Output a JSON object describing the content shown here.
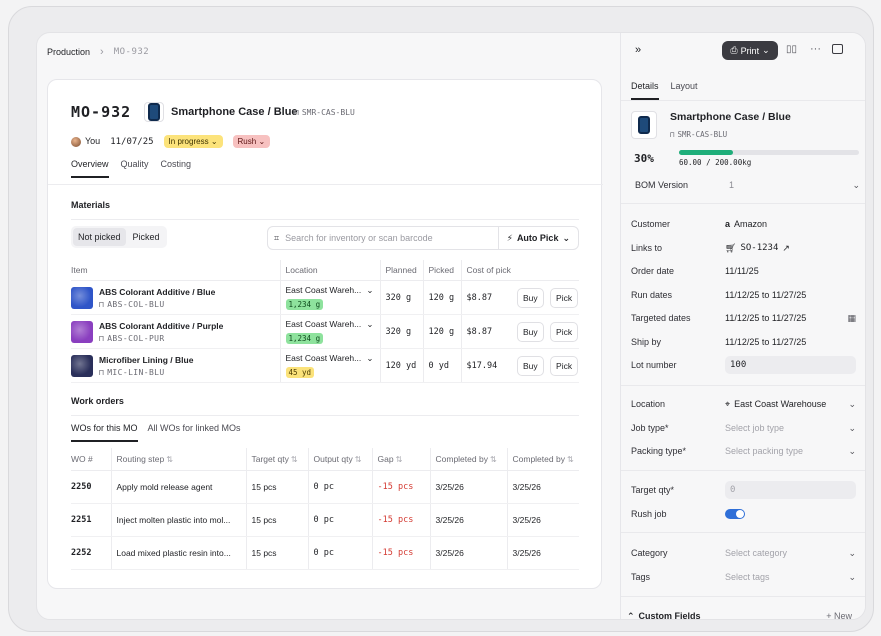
{
  "breadcrumb": {
    "root": "Production",
    "current": "MO-932"
  },
  "order": {
    "id": "MO-932",
    "product_name": "Smartphone Case / Blue",
    "product_sku": "SMR-CAS-BLU",
    "owner": "You",
    "date": "11/07/25",
    "status": "In progress",
    "priority": "Rush"
  },
  "tabs": [
    "Overview",
    "Quality",
    "Costing"
  ],
  "materials": {
    "title": "Materials",
    "seg_not_picked": "Not picked",
    "seg_picked": "Picked",
    "search_placeholder": "Search for inventory or scan barcode",
    "auto_pick": "Auto Pick",
    "columns": [
      "Item",
      "Location",
      "Planned",
      "Picked",
      "Cost of pick"
    ],
    "buy_label": "Buy",
    "pick_label": "Pick",
    "rows": [
      {
        "name": "ABS Colorant Additive / Blue",
        "sku": "ABS-COL-BLU",
        "location": "East Coast Wareh...",
        "stock": "1,234 g",
        "stock_color": "green",
        "planned": "320 g",
        "picked": "120 g",
        "cost": "$8.87",
        "swatch": "#2f55c8"
      },
      {
        "name": "ABS Colorant Additive / Purple",
        "sku": "ABS-COL-PUR",
        "location": "East Coast Wareh...",
        "stock": "1,234 g",
        "stock_color": "green",
        "planned": "320 g",
        "picked": "120 g",
        "cost": "$8.87",
        "swatch": "#8a3fbf"
      },
      {
        "name": "Microfiber Lining / Blue",
        "sku": "MIC-LIN-BLU",
        "location": "East Coast Wareh...",
        "stock": "45 yd",
        "stock_color": "yellow",
        "planned": "120 yd",
        "picked": "0 yd",
        "cost": "$17.94",
        "swatch": "#2a2f5a"
      }
    ]
  },
  "work_orders": {
    "title": "Work orders",
    "tab_this": "WOs for this MO",
    "tab_all": "All WOs for linked MOs",
    "columns": [
      "WO #",
      "Routing step",
      "Target qty",
      "Output qty",
      "Gap",
      "Completed by",
      "Completed by"
    ],
    "rows": [
      {
        "num": "2250",
        "step": "Apply mold release agent",
        "target": "15 pcs",
        "output": "0 pc",
        "gap": "-15 pcs",
        "c1": "3/25/26",
        "c2": "3/25/26"
      },
      {
        "num": "2251",
        "step": "Inject molten plastic into mol...",
        "target": "15 pcs",
        "output": "0 pc",
        "gap": "-15 pcs",
        "c1": "3/25/26",
        "c2": "3/25/26"
      },
      {
        "num": "2252",
        "step": "Load mixed plastic resin into...",
        "target": "15 pcs",
        "output": "0 pc",
        "gap": "-15 pcs",
        "c1": "3/25/26",
        "c2": "3/25/26"
      }
    ]
  },
  "panel": {
    "print_label": "Print",
    "tab_details": "Details",
    "tab_layout": "Layout",
    "product_name": "Smartphone Case / Blue",
    "product_sku": "SMR-CAS-BLU",
    "progress_pct": "30%",
    "progress_fraction": 0.3,
    "progress_text": "60.00 / 200.00kg",
    "bom_label": "BOM Version",
    "bom_value": "1",
    "customer_label": "Customer",
    "customer_value": "Amazon",
    "links_label": "Links to",
    "links_value": "SO-1234",
    "order_date_label": "Order date",
    "order_date_value": "11/11/25",
    "run_dates_label": "Run dates",
    "run_dates_value": "11/12/25 to 11/27/25",
    "targeted_label": "Targeted dates",
    "targeted_value": "11/12/25 to 11/27/25",
    "ship_label": "Ship by",
    "ship_value": "11/12/25 to 11/27/25",
    "lot_label": "Lot number",
    "lot_value": "100",
    "location_label": "Location",
    "location_value": "East Coast Warehouse",
    "job_type_label": "Job type*",
    "job_type_placeholder": "Select job type",
    "packing_label": "Packing type*",
    "packing_placeholder": "Select packing type",
    "target_qty_label": "Target qty*",
    "target_qty_value": "0",
    "rush_label": "Rush job",
    "category_label": "Category",
    "category_placeholder": "Select category",
    "tags_label": "Tags",
    "tags_placeholder": "Select tags",
    "custom_fields_label": "Custom Fields",
    "new_label": "New"
  },
  "colors": {
    "accent_green": "#1fae7a",
    "toggle_blue": "#2f6fd8",
    "status_yellow": "#fce37b",
    "rush_red": "#f7c1c0",
    "gap_red": "#d43b33"
  }
}
